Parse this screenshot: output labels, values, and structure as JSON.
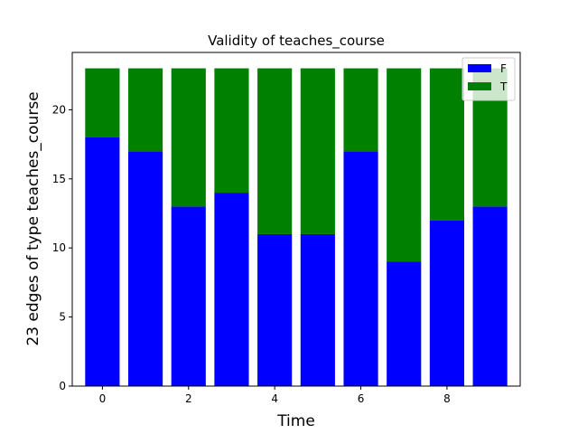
{
  "chart_data": {
    "type": "bar",
    "stacked": true,
    "title": "Validity of teaches_course",
    "xlabel": "Time",
    "ylabel": "23 edges  of type teaches_course",
    "x": [
      0,
      1,
      2,
      3,
      4,
      5,
      6,
      7,
      8,
      9
    ],
    "xticks": [
      0,
      2,
      4,
      6,
      8
    ],
    "yticks": [
      0,
      5,
      10,
      15,
      20
    ],
    "xlim": [
      -0.7,
      9.7
    ],
    "ylim": [
      0,
      24.15
    ],
    "grid": false,
    "legend_position": "top-right",
    "series": [
      {
        "name": "F",
        "color": "#0000ff",
        "values": [
          18,
          17,
          13,
          14,
          11,
          11,
          17,
          9,
          12,
          13
        ]
      },
      {
        "name": "T",
        "color": "#008000",
        "values": [
          5,
          6,
          10,
          9,
          12,
          12,
          6,
          14,
          11,
          10
        ]
      }
    ]
  }
}
